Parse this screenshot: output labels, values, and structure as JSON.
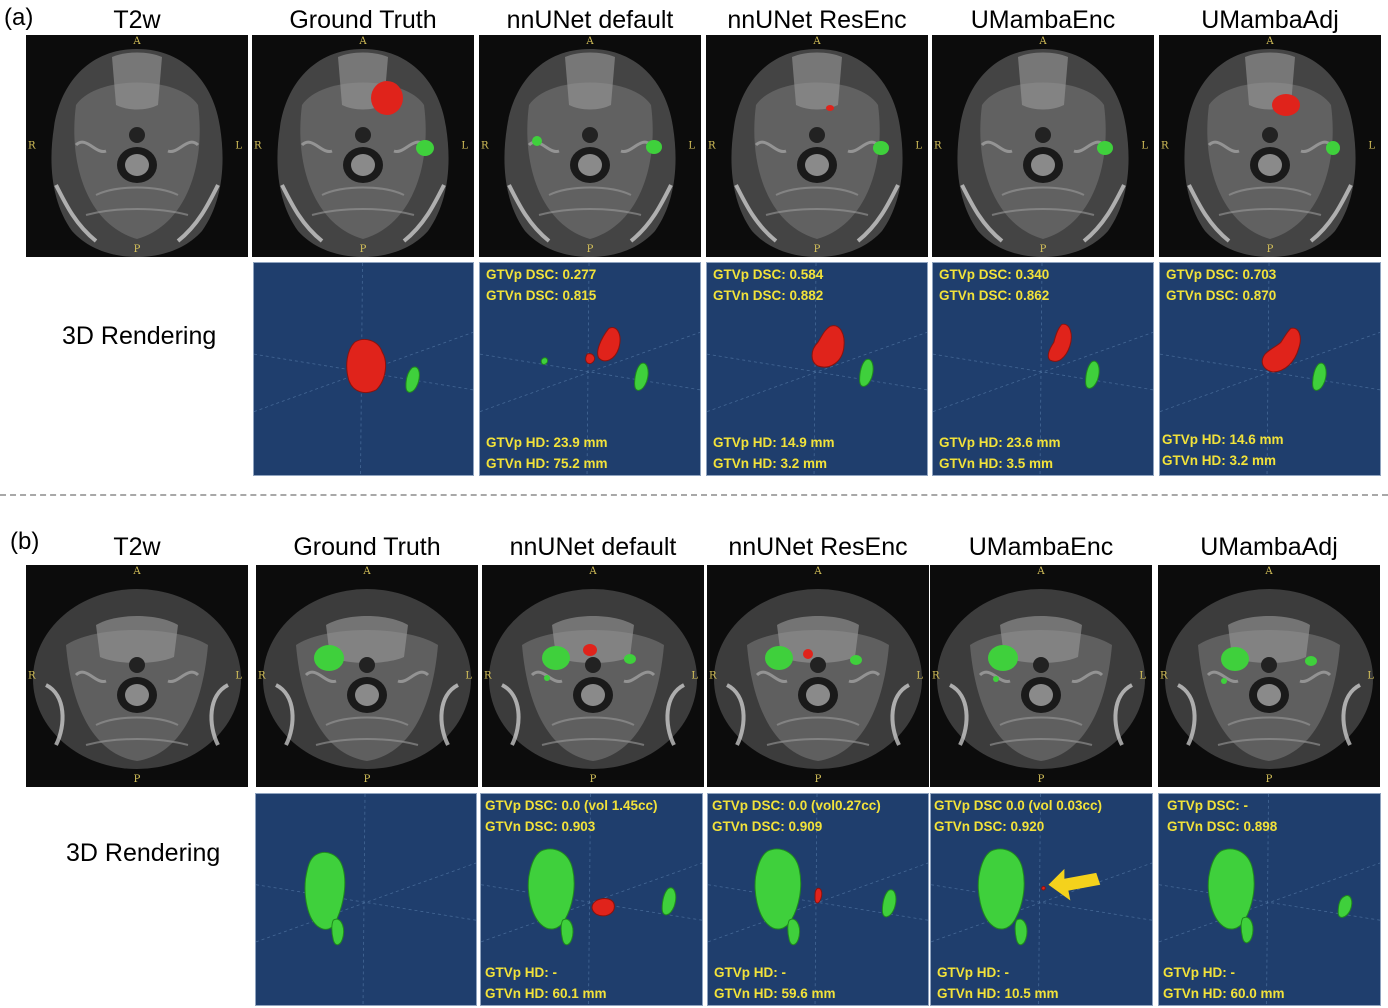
{
  "panel_a": {
    "label": "(a)",
    "titles": [
      "T2w",
      "Ground Truth",
      "nnUNet default",
      "nnUNet ResEnc",
      "UMambaEnc",
      "UMambaAdj"
    ],
    "row_title": "3D Rendering",
    "orientation": {
      "anterior": "A",
      "posterior": "P",
      "right": "R",
      "left": "L"
    },
    "metrics": [
      {
        "p_dsc": "GTVp DSC: 0.277",
        "n_dsc": "GTVn DSC: 0.815",
        "p_hd": "GTVp HD: 23.9 mm",
        "n_hd": "GTVn HD: 75.2 mm"
      },
      {
        "p_dsc": "GTVp DSC: 0.584",
        "n_dsc": "GTVn DSC: 0.882",
        "p_hd": "GTVp HD: 14.9 mm",
        "n_hd": "GTVn HD: 3.2 mm"
      },
      {
        "p_dsc": "GTVp DSC: 0.340",
        "n_dsc": "GTVn DSC: 0.862",
        "p_hd": "GTVp HD: 23.6 mm",
        "n_hd": "GTVn HD: 3.5 mm"
      },
      {
        "p_dsc": "GTVp DSC: 0.703",
        "n_dsc": "GTVn DSC: 0.870",
        "p_hd": "GTVp HD: 14.6 mm",
        "n_hd": "GTVn HD: 3.2 mm"
      }
    ]
  },
  "panel_b": {
    "label": "(b)",
    "titles": [
      "T2w",
      "Ground Truth",
      "nnUNet default",
      "nnUNet ResEnc",
      "UMambaEnc",
      "UMambaAdj"
    ],
    "row_title": "3D Rendering",
    "orientation": {
      "anterior": "A",
      "posterior": "P",
      "right": "R",
      "left": "L"
    },
    "metrics": [
      {
        "p_dsc": "GTVp DSC: 0.0 (vol 1.45cc)",
        "n_dsc": "GTVn DSC: 0.903",
        "p_hd": "GTVp HD: -",
        "n_hd": "GTVn HD: 60.1 mm"
      },
      {
        "p_dsc": "GTVp DSC: 0.0 (vol0.27cc)",
        "n_dsc": "GTVn DSC: 0.909",
        "p_hd": "GTVp HD: -",
        "n_hd": "GTVn HD: 59.6 mm"
      },
      {
        "p_dsc": "GTVp DSC 0.0 (vol 0.03cc)",
        "n_dsc": "GTVn DSC: 0.920",
        "p_hd": "GTVp HD: -",
        "n_hd": "GTVn HD: 10.5 mm"
      },
      {
        "p_dsc": "GTVp DSC: -",
        "n_dsc": "GTVn DSC: 0.898",
        "p_hd": "GTVp HD: -",
        "n_hd": "GTVn HD: 60.0 mm"
      }
    ]
  },
  "colors": {
    "gtvp": "#e0231b",
    "gtvn": "#3fd03c",
    "render_bg": "#1f3e6d",
    "metric_text": "#f2e23a",
    "orientation_text": "#d6c25a",
    "arrow": "#f4d21c"
  },
  "icons": {
    "annotation_arrow": "arrow-left-icon"
  }
}
